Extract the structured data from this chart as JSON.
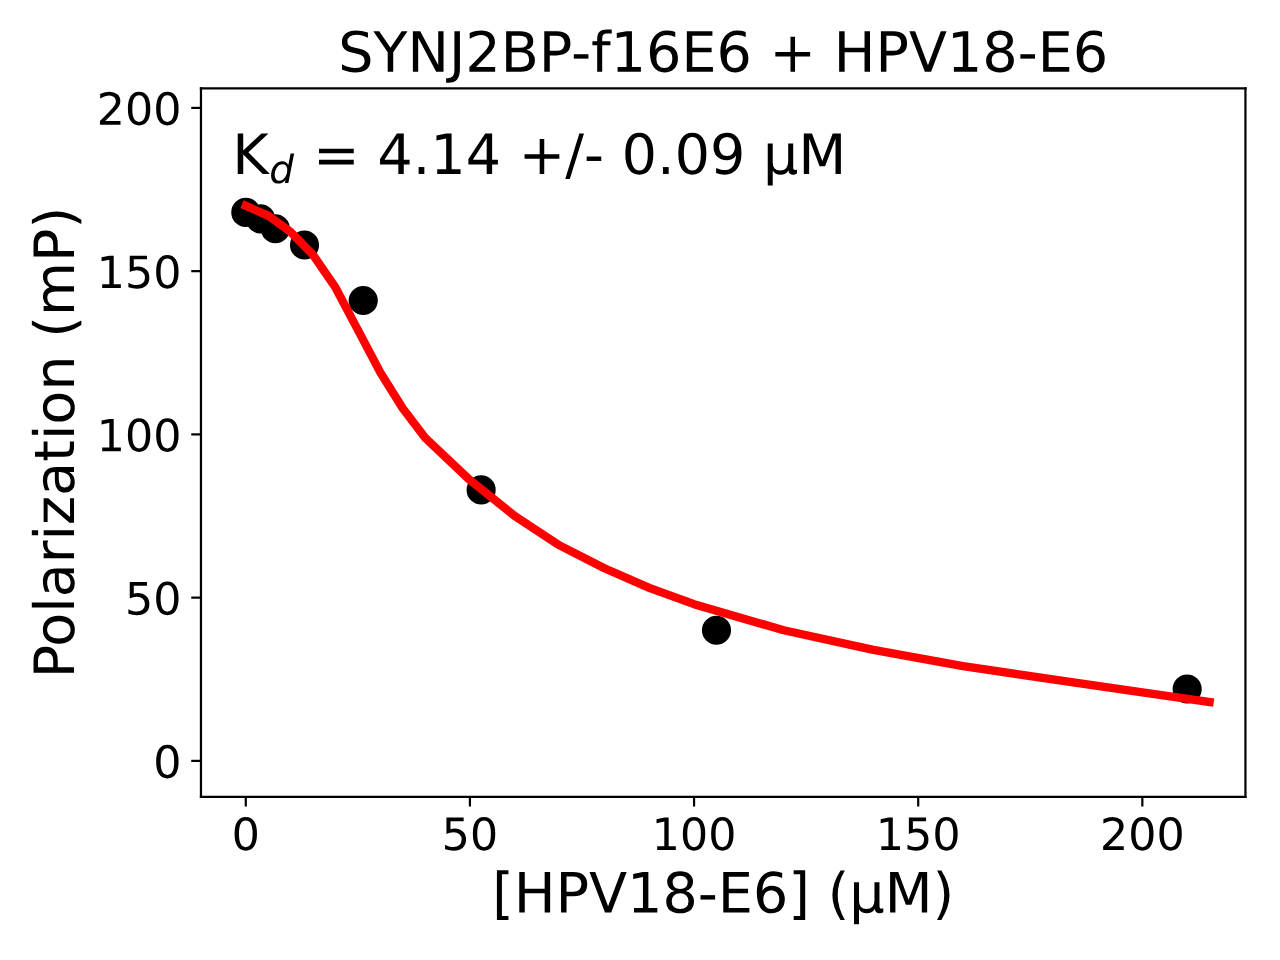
{
  "chart_data": {
    "type": "scatter",
    "title": "SYNJ2BP-f16E6 + HPV18-E6",
    "xlabel": "[HPV18-E6] (μM)",
    "ylabel": "Polarization (mP)",
    "annotations": [
      "K$_{d}$ = 4.14 +/- 0.09 μM"
    ],
    "series": [
      {
        "color": "#000000",
        "marker": "circle",
        "x": [
          0,
          3.3,
          6.6,
          13.1,
          26.2,
          52.5,
          105,
          210
        ],
        "values": [
          168,
          166,
          163,
          158,
          141,
          83,
          40,
          22
        ]
      },
      {
        "type": "line",
        "color": "#ff0000",
        "marker": "none",
        "line_style": "solid",
        "x": [
          0,
          5,
          10,
          15,
          20,
          25,
          30,
          35,
          40,
          50,
          60,
          70,
          80,
          90,
          100,
          120,
          140,
          160,
          180,
          200,
          215
        ],
        "values": [
          170,
          167,
          162,
          155,
          145,
          132,
          119,
          108,
          99,
          86,
          75,
          66,
          59,
          53,
          48,
          40,
          34,
          29,
          25,
          21,
          18
        ]
      }
    ],
    "xlim": [
      -10,
      223
    ],
    "ylim": [
      -11,
      206
    ],
    "xticks": [
      0,
      50,
      100,
      150,
      200
    ],
    "yticks": [
      0,
      50,
      100,
      150,
      200
    ],
    "grid": false,
    "legend": false
  }
}
